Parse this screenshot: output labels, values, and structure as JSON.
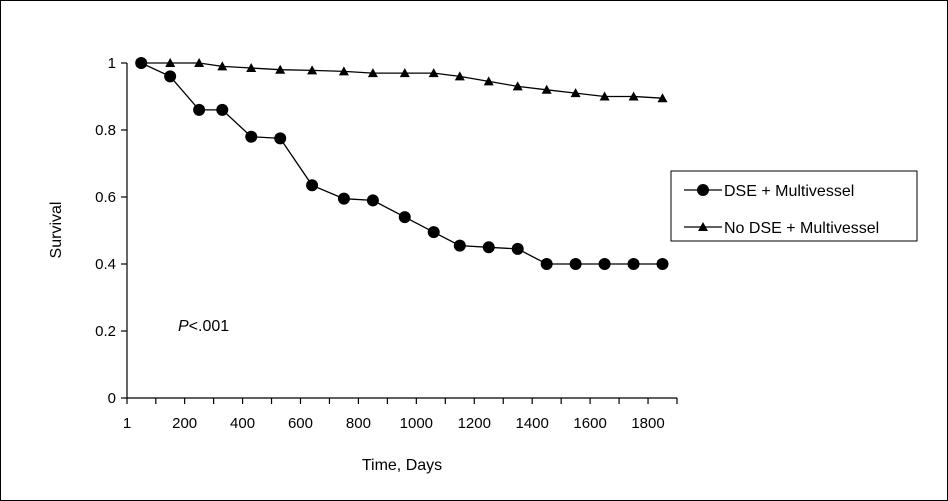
{
  "chart_data": {
    "type": "line",
    "xlabel": "Time, Days",
    "ylabel": "Survival",
    "xlim": [
      1,
      1900
    ],
    "ylim": [
      0,
      1
    ],
    "x_ticks": [
      1,
      200,
      400,
      600,
      800,
      1000,
      1200,
      1400,
      1600,
      1800
    ],
    "y_ticks": [
      0,
      0.2,
      0.4,
      0.6,
      0.8,
      1
    ],
    "grid": false,
    "legend_position": "right",
    "annotation": {
      "prefix": "P",
      "text": "<.001"
    },
    "series": [
      {
        "name": "DSE + Multivessel",
        "marker": "circle",
        "x": [
          50,
          150,
          250,
          330,
          430,
          530,
          640,
          750,
          850,
          960,
          1060,
          1150,
          1250,
          1350,
          1450,
          1550,
          1650,
          1750,
          1850
        ],
        "y": [
          1.0,
          0.96,
          0.86,
          0.86,
          0.78,
          0.775,
          0.635,
          0.595,
          0.59,
          0.54,
          0.495,
          0.455,
          0.45,
          0.445,
          0.4,
          0.4,
          0.4,
          0.4,
          0.4
        ]
      },
      {
        "name": "No DSE + Multivessel",
        "marker": "triangle",
        "x": [
          50,
          150,
          250,
          330,
          430,
          530,
          640,
          750,
          850,
          960,
          1060,
          1150,
          1250,
          1350,
          1450,
          1550,
          1650,
          1750,
          1850
        ],
        "y": [
          1.0,
          1.0,
          1.0,
          0.99,
          0.985,
          0.98,
          0.978,
          0.975,
          0.97,
          0.97,
          0.97,
          0.96,
          0.945,
          0.93,
          0.92,
          0.91,
          0.9,
          0.9,
          0.895
        ]
      }
    ]
  }
}
